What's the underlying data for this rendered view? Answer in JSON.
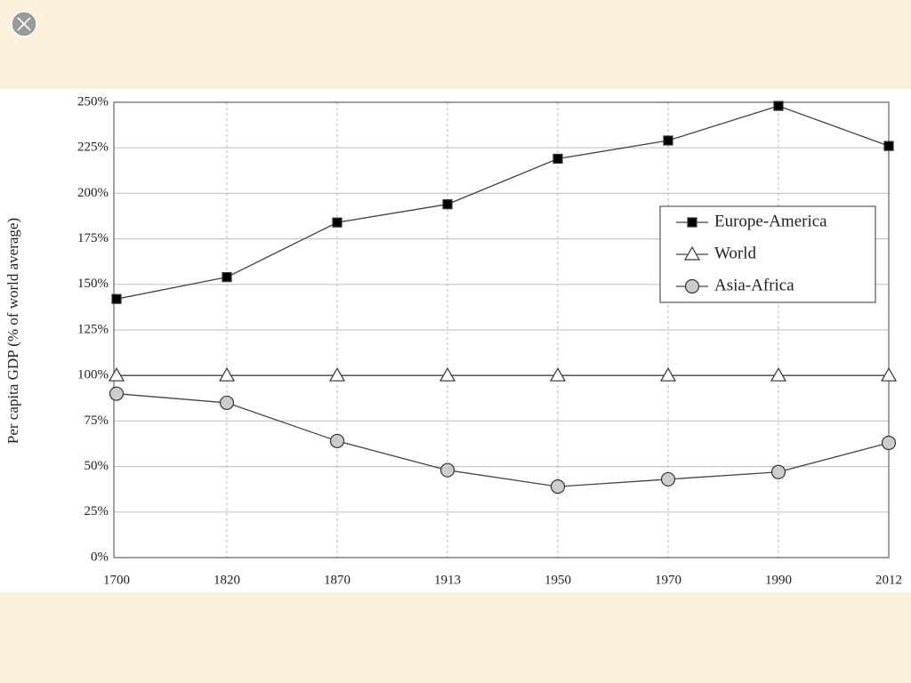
{
  "chart_data": {
    "type": "line",
    "ylabel": "Per capita GDP (% of  world average)",
    "categories": [
      "1700",
      "1820",
      "1870",
      "1913",
      "1950",
      "1970",
      "1990",
      "2012"
    ],
    "series": [
      {
        "name": "Europe-America",
        "color": "#000000",
        "marker": "square",
        "values": [
          142,
          154,
          184,
          194,
          219,
          229,
          248,
          226
        ]
      },
      {
        "name": "World",
        "color": "#ffffff",
        "marker": "triangle",
        "values": [
          100,
          100,
          100,
          100,
          100,
          100,
          100,
          100
        ]
      },
      {
        "name": "Asia-Africa",
        "color": "#cccccc",
        "marker": "circle",
        "values": [
          90,
          85,
          64,
          48,
          39,
          43,
          47,
          63
        ]
      }
    ],
    "ylim": [
      0,
      250
    ],
    "yticks": [
      {
        "value": 0,
        "label": "0%"
      },
      {
        "value": 25,
        "label": "25%"
      },
      {
        "value": 50,
        "label": "50%"
      },
      {
        "value": 75,
        "label": "75%"
      },
      {
        "value": 100,
        "label": "100%"
      },
      {
        "value": 125,
        "label": "125%"
      },
      {
        "value": 150,
        "label": "150%"
      },
      {
        "value": 175,
        "label": "175%"
      },
      {
        "value": 200,
        "label": "200%"
      },
      {
        "value": 225,
        "label": "225%"
      },
      {
        "value": 250,
        "label": "250%"
      }
    ],
    "grid": true
  }
}
